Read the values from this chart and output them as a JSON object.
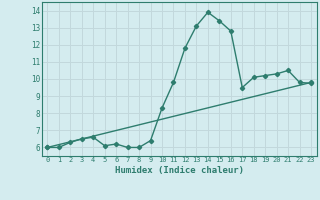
{
  "xlabel": "Humidex (Indice chaleur)",
  "bg_color": "#d4ecef",
  "grid_color": "#c2d8dc",
  "line_color": "#2e7d6e",
  "xlim": [
    -0.5,
    23.5
  ],
  "ylim": [
    5.5,
    14.5
  ],
  "xticks": [
    0,
    1,
    2,
    3,
    4,
    5,
    6,
    7,
    8,
    9,
    10,
    11,
    12,
    13,
    14,
    15,
    16,
    17,
    18,
    19,
    20,
    21,
    22,
    23
  ],
  "yticks": [
    6,
    7,
    8,
    9,
    10,
    11,
    12,
    13,
    14
  ],
  "curve1_x": [
    0,
    1,
    2,
    3,
    4,
    5,
    6,
    7,
    8,
    9,
    10,
    11,
    12,
    13,
    14,
    15,
    16,
    17,
    18,
    19,
    20,
    21,
    22,
    23
  ],
  "curve1_y": [
    6.0,
    6.0,
    6.3,
    6.5,
    6.6,
    6.1,
    6.2,
    6.0,
    6.0,
    6.4,
    8.3,
    9.8,
    11.8,
    13.1,
    13.9,
    13.4,
    12.8,
    9.5,
    10.1,
    10.2,
    10.3,
    10.5,
    9.8,
    9.75
  ],
  "curve2_x": [
    0,
    23
  ],
  "curve2_y": [
    6.0,
    9.8
  ],
  "marker": "D",
  "markersize": 2.2,
  "linewidth": 1.0
}
